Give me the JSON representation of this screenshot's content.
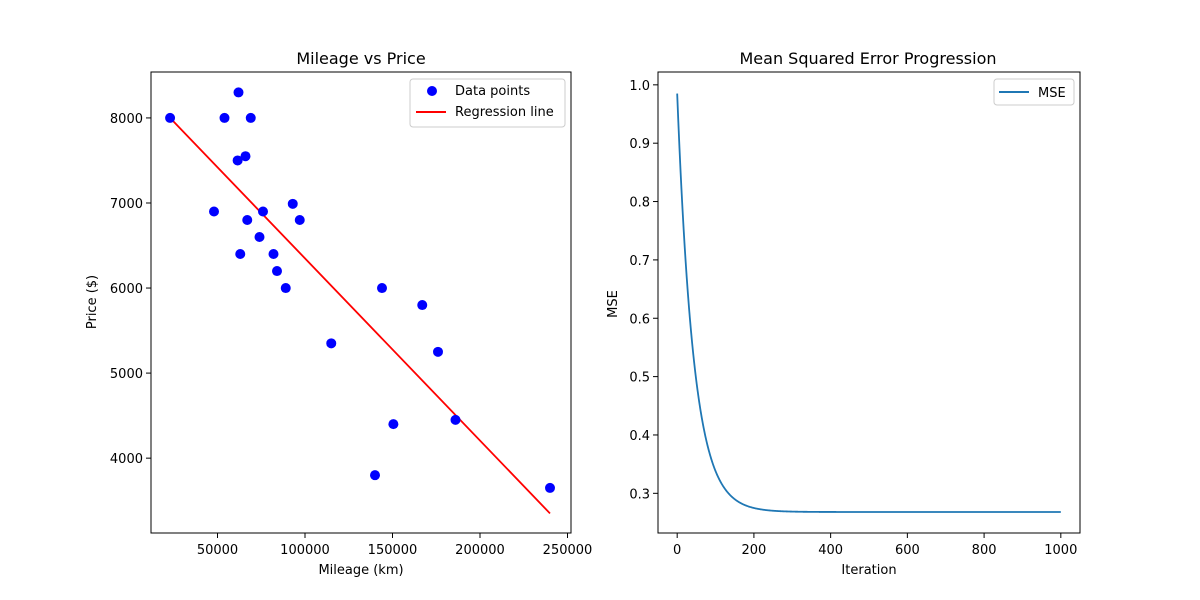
{
  "chart_data": [
    {
      "type": "scatter",
      "title": "Mileage vs Price",
      "xlabel": "Mileage (km)",
      "ylabel": "Price ($)",
      "xlim": [
        12000,
        252000
      ],
      "ylim": [
        3120,
        8540
      ],
      "xticks": [
        50000,
        100000,
        150000,
        200000,
        250000
      ],
      "xtick_labels": [
        "50000",
        "100000",
        "150000",
        "200000",
        "250000"
      ],
      "yticks": [
        4000,
        5000,
        6000,
        7000,
        8000
      ],
      "ytick_labels": [
        "4000",
        "5000",
        "6000",
        "7000",
        "8000"
      ],
      "legend_position": "top-right",
      "grid": false,
      "series": [
        {
          "name": "Data points",
          "kind": "scatter",
          "color": "#0000ff",
          "points": [
            [
              22900,
              8000
            ],
            [
              48000,
              6900
            ],
            [
              54000,
              8000
            ],
            [
              61500,
              7500
            ],
            [
              62000,
              8300
            ],
            [
              63000,
              6400
            ],
            [
              66000,
              7550
            ],
            [
              67000,
              6800
            ],
            [
              69000,
              8000
            ],
            [
              74000,
              6600
            ],
            [
              76000,
              6900
            ],
            [
              82000,
              6400
            ],
            [
              84000,
              6200
            ],
            [
              89000,
              6000
            ],
            [
              93000,
              6990
            ],
            [
              97000,
              6800
            ],
            [
              115000,
              5350
            ],
            [
              140000,
              3800
            ],
            [
              144000,
              6000
            ],
            [
              150500,
              4400
            ],
            [
              167000,
              5800
            ],
            [
              176000,
              5250
            ],
            [
              186000,
              4450
            ],
            [
              240000,
              3650
            ]
          ]
        },
        {
          "name": "Regression line",
          "kind": "line",
          "color": "#ff0000",
          "points": [
            [
              22900,
              8000
            ],
            [
              240000,
              3350
            ]
          ]
        }
      ]
    },
    {
      "type": "line",
      "title": "Mean Squared Error Progression",
      "xlabel": "Iteration",
      "ylabel": "MSE",
      "xlim": [
        -50,
        1050
      ],
      "ylim": [
        0.232,
        1.022
      ],
      "xticks": [
        0,
        200,
        400,
        600,
        800,
        1000
      ],
      "xtick_labels": [
        "0",
        "200",
        "400",
        "600",
        "800",
        "1000"
      ],
      "yticks": [
        0.3,
        0.4,
        0.5,
        0.6,
        0.7,
        0.8,
        0.9,
        1.0
      ],
      "ytick_labels": [
        "0.3",
        "0.4",
        "0.5",
        "0.6",
        "0.7",
        "0.8",
        "0.9",
        "1.0"
      ],
      "legend_position": "top-right",
      "grid": false,
      "series": [
        {
          "name": "MSE",
          "kind": "line",
          "color": "#1f77b4",
          "start_value": 0.985,
          "final_value": 0.268,
          "decay_iterations": 43,
          "iterations": 1000
        }
      ]
    }
  ]
}
